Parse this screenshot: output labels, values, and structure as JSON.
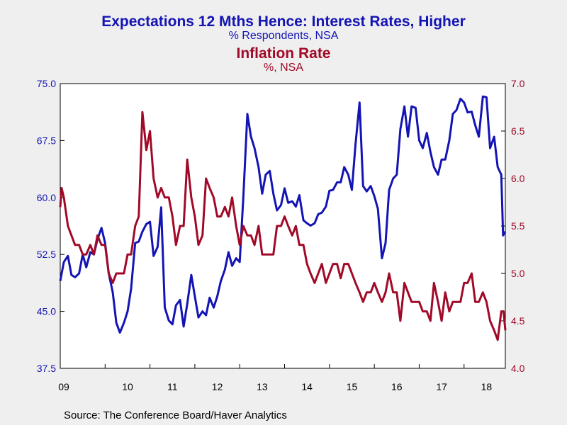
{
  "header": {
    "title_left": "Expectations 12 Mths Hence: Interest Rates, Higher",
    "subtitle_left": "% Respondents, NSA",
    "title_right": "Inflation Rate",
    "subtitle_right": "%, NSA"
  },
  "footer": {
    "source": "Source:  The Conference Board/Haver Analytics"
  },
  "colors": {
    "left_series": "#1414b4",
    "right_series": "#a00a28",
    "background": "#efefef",
    "plot_bg": "#ffffff"
  },
  "chart_data": {
    "type": "line",
    "x_ticks": [
      "09",
      "10",
      "11",
      "12",
      "13",
      "14",
      "15",
      "16",
      "17",
      "18"
    ],
    "x_range": [
      2009.0,
      2018.92
    ],
    "left_axis": {
      "ticks": [
        "75.0",
        "67.5",
        "60.0",
        "52.5",
        "45.0",
        "37.5"
      ],
      "ylim": [
        37.5,
        75.0
      ]
    },
    "right_axis": {
      "ticks": [
        "7.0",
        "6.5",
        "6.0",
        "5.5",
        "5.0",
        "4.5",
        "4.0"
      ],
      "ylim": [
        4.0,
        7.0
      ]
    },
    "grid": false,
    "series": [
      {
        "name": "Expectations 12 Mths Hence: Interest Rates, Higher",
        "axis": "left",
        "points": [
          [
            2009.0,
            49.0
          ],
          [
            2009.08,
            51.5
          ],
          [
            2009.17,
            52.3
          ],
          [
            2009.25,
            49.8
          ],
          [
            2009.33,
            49.5
          ],
          [
            2009.42,
            50.0
          ],
          [
            2009.5,
            52.5
          ],
          [
            2009.58,
            50.8
          ],
          [
            2009.67,
            52.8
          ],
          [
            2009.75,
            52.5
          ],
          [
            2009.83,
            54.5
          ],
          [
            2009.92,
            56.0
          ],
          [
            2010.0,
            54.0
          ],
          [
            2010.08,
            50.0
          ],
          [
            2010.17,
            47.5
          ],
          [
            2010.25,
            43.5
          ],
          [
            2010.33,
            42.2
          ],
          [
            2010.42,
            43.5
          ],
          [
            2010.5,
            45.0
          ],
          [
            2010.58,
            48.0
          ],
          [
            2010.67,
            54.0
          ],
          [
            2010.75,
            54.2
          ],
          [
            2010.83,
            55.5
          ],
          [
            2010.92,
            56.5
          ],
          [
            2011.0,
            56.8
          ],
          [
            2011.08,
            52.3
          ],
          [
            2011.17,
            53.5
          ],
          [
            2011.25,
            58.7
          ],
          [
            2011.33,
            45.5
          ],
          [
            2011.42,
            43.8
          ],
          [
            2011.5,
            43.3
          ],
          [
            2011.58,
            45.8
          ],
          [
            2011.67,
            46.5
          ],
          [
            2011.75,
            43.0
          ],
          [
            2011.83,
            46.0
          ],
          [
            2011.92,
            49.8
          ],
          [
            2012.0,
            47.0
          ],
          [
            2012.08,
            44.2
          ],
          [
            2012.17,
            45.0
          ],
          [
            2012.25,
            44.5
          ],
          [
            2012.33,
            46.8
          ],
          [
            2012.42,
            45.5
          ],
          [
            2012.5,
            47.0
          ],
          [
            2012.58,
            49.0
          ],
          [
            2012.67,
            50.5
          ],
          [
            2012.75,
            52.8
          ],
          [
            2012.83,
            51.0
          ],
          [
            2012.92,
            52.0
          ],
          [
            2013.0,
            51.5
          ],
          [
            2013.08,
            60.0
          ],
          [
            2013.17,
            71.0
          ],
          [
            2013.25,
            68.0
          ],
          [
            2013.33,
            66.5
          ],
          [
            2013.42,
            64.0
          ],
          [
            2013.5,
            60.5
          ],
          [
            2013.58,
            63.0
          ],
          [
            2013.67,
            63.5
          ],
          [
            2013.75,
            60.5
          ],
          [
            2013.83,
            58.3
          ],
          [
            2013.92,
            59.0
          ],
          [
            2014.0,
            61.2
          ],
          [
            2014.08,
            59.3
          ],
          [
            2014.17,
            59.5
          ],
          [
            2014.25,
            58.8
          ],
          [
            2014.33,
            60.3
          ],
          [
            2014.42,
            57.0
          ],
          [
            2014.5,
            56.6
          ],
          [
            2014.58,
            56.3
          ],
          [
            2014.67,
            56.6
          ],
          [
            2014.75,
            57.8
          ],
          [
            2014.83,
            58.0
          ],
          [
            2014.92,
            58.8
          ],
          [
            2015.0,
            60.9
          ],
          [
            2015.08,
            61.0
          ],
          [
            2015.17,
            62.0
          ],
          [
            2015.25,
            62.0
          ],
          [
            2015.33,
            64.0
          ],
          [
            2015.42,
            63.0
          ],
          [
            2015.5,
            61.0
          ],
          [
            2015.58,
            67.0
          ],
          [
            2015.67,
            72.5
          ],
          [
            2015.75,
            61.5
          ],
          [
            2015.83,
            60.8
          ],
          [
            2015.92,
            61.5
          ],
          [
            2016.0,
            60.2
          ],
          [
            2016.08,
            58.5
          ],
          [
            2016.17,
            52.0
          ],
          [
            2016.25,
            54.0
          ],
          [
            2016.33,
            61.0
          ],
          [
            2016.42,
            62.5
          ],
          [
            2016.5,
            63.0
          ],
          [
            2016.58,
            69.0
          ],
          [
            2016.67,
            72.0
          ],
          [
            2016.75,
            68.0
          ],
          [
            2016.83,
            72.0
          ],
          [
            2016.92,
            71.8
          ],
          [
            2017.0,
            67.5
          ],
          [
            2017.08,
            66.5
          ],
          [
            2017.17,
            68.5
          ],
          [
            2017.25,
            66.0
          ],
          [
            2017.33,
            64.0
          ],
          [
            2017.42,
            63.0
          ],
          [
            2017.5,
            65.0
          ],
          [
            2017.58,
            65.0
          ],
          [
            2017.67,
            67.5
          ],
          [
            2017.75,
            71.0
          ],
          [
            2017.83,
            71.5
          ],
          [
            2017.92,
            73.0
          ],
          [
            2018.0,
            72.5
          ],
          [
            2018.08,
            71.2
          ],
          [
            2018.17,
            71.3
          ],
          [
            2018.25,
            69.5
          ],
          [
            2018.33,
            68.0
          ],
          [
            2018.42,
            73.3
          ],
          [
            2018.5,
            73.2
          ],
          [
            2018.58,
            66.5
          ],
          [
            2018.67,
            68.0
          ],
          [
            2018.75,
            64.0
          ],
          [
            2018.83,
            63.0
          ],
          [
            2018.87,
            55.0
          ],
          [
            2018.92,
            55.5
          ]
        ]
      },
      {
        "name": "Inflation Rate",
        "axis": "right",
        "points": [
          [
            2009.0,
            5.7
          ],
          [
            2009.03,
            5.9
          ],
          [
            2009.08,
            5.8
          ],
          [
            2009.17,
            5.5
          ],
          [
            2009.25,
            5.4
          ],
          [
            2009.33,
            5.3
          ],
          [
            2009.42,
            5.3
          ],
          [
            2009.5,
            5.2
          ],
          [
            2009.58,
            5.2
          ],
          [
            2009.67,
            5.3
          ],
          [
            2009.75,
            5.2
          ],
          [
            2009.83,
            5.4
          ],
          [
            2009.92,
            5.3
          ],
          [
            2010.0,
            5.3
          ],
          [
            2010.08,
            5.0
          ],
          [
            2010.17,
            4.9
          ],
          [
            2010.25,
            5.0
          ],
          [
            2010.33,
            5.0
          ],
          [
            2010.42,
            5.0
          ],
          [
            2010.5,
            5.2
          ],
          [
            2010.58,
            5.2
          ],
          [
            2010.67,
            5.5
          ],
          [
            2010.75,
            5.6
          ],
          [
            2010.83,
            6.7
          ],
          [
            2010.92,
            6.3
          ],
          [
            2011.0,
            6.5
          ],
          [
            2011.08,
            6.0
          ],
          [
            2011.17,
            5.8
          ],
          [
            2011.25,
            5.9
          ],
          [
            2011.33,
            5.8
          ],
          [
            2011.42,
            5.8
          ],
          [
            2011.5,
            5.6
          ],
          [
            2011.58,
            5.3
          ],
          [
            2011.67,
            5.5
          ],
          [
            2011.75,
            5.5
          ],
          [
            2011.83,
            6.2
          ],
          [
            2011.92,
            5.8
          ],
          [
            2012.0,
            5.6
          ],
          [
            2012.08,
            5.3
          ],
          [
            2012.17,
            5.4
          ],
          [
            2012.25,
            6.0
          ],
          [
            2012.33,
            5.9
          ],
          [
            2012.42,
            5.8
          ],
          [
            2012.5,
            5.6
          ],
          [
            2012.58,
            5.6
          ],
          [
            2012.67,
            5.7
          ],
          [
            2012.75,
            5.6
          ],
          [
            2012.83,
            5.8
          ],
          [
            2012.92,
            5.5
          ],
          [
            2013.0,
            5.3
          ],
          [
            2013.08,
            5.5
          ],
          [
            2013.17,
            5.4
          ],
          [
            2013.25,
            5.4
          ],
          [
            2013.33,
            5.3
          ],
          [
            2013.42,
            5.5
          ],
          [
            2013.5,
            5.2
          ],
          [
            2013.58,
            5.2
          ],
          [
            2013.67,
            5.2
          ],
          [
            2013.75,
            5.2
          ],
          [
            2013.83,
            5.5
          ],
          [
            2013.92,
            5.5
          ],
          [
            2014.0,
            5.6
          ],
          [
            2014.08,
            5.5
          ],
          [
            2014.17,
            5.4
          ],
          [
            2014.25,
            5.5
          ],
          [
            2014.33,
            5.3
          ],
          [
            2014.42,
            5.3
          ],
          [
            2014.5,
            5.1
          ],
          [
            2014.58,
            5.0
          ],
          [
            2014.67,
            4.9
          ],
          [
            2014.75,
            5.0
          ],
          [
            2014.83,
            5.1
          ],
          [
            2014.92,
            4.9
          ],
          [
            2015.0,
            5.0
          ],
          [
            2015.08,
            5.1
          ],
          [
            2015.17,
            5.1
          ],
          [
            2015.25,
            4.95
          ],
          [
            2015.33,
            5.1
          ],
          [
            2015.42,
            5.1
          ],
          [
            2015.5,
            5.0
          ],
          [
            2015.58,
            4.9
          ],
          [
            2015.67,
            4.8
          ],
          [
            2015.75,
            4.7
          ],
          [
            2015.83,
            4.8
          ],
          [
            2015.92,
            4.8
          ],
          [
            2016.0,
            4.9
          ],
          [
            2016.08,
            4.8
          ],
          [
            2016.17,
            4.7
          ],
          [
            2016.25,
            4.8
          ],
          [
            2016.33,
            5.0
          ],
          [
            2016.42,
            4.8
          ],
          [
            2016.5,
            4.8
          ],
          [
            2016.58,
            4.5
          ],
          [
            2016.67,
            4.9
          ],
          [
            2016.75,
            4.8
          ],
          [
            2016.83,
            4.7
          ],
          [
            2016.92,
            4.7
          ],
          [
            2017.0,
            4.7
          ],
          [
            2017.08,
            4.6
          ],
          [
            2017.17,
            4.6
          ],
          [
            2017.25,
            4.5
          ],
          [
            2017.33,
            4.9
          ],
          [
            2017.42,
            4.7
          ],
          [
            2017.5,
            4.5
          ],
          [
            2017.58,
            4.8
          ],
          [
            2017.67,
            4.6
          ],
          [
            2017.75,
            4.7
          ],
          [
            2017.83,
            4.7
          ],
          [
            2017.92,
            4.7
          ],
          [
            2018.0,
            4.9
          ],
          [
            2018.08,
            4.9
          ],
          [
            2018.17,
            5.0
          ],
          [
            2018.25,
            4.7
          ],
          [
            2018.33,
            4.7
          ],
          [
            2018.42,
            4.8
          ],
          [
            2018.5,
            4.7
          ],
          [
            2018.58,
            4.5
          ],
          [
            2018.67,
            4.4
          ],
          [
            2018.75,
            4.3
          ],
          [
            2018.83,
            4.6
          ],
          [
            2018.88,
            4.6
          ],
          [
            2018.92,
            4.4
          ]
        ]
      }
    ]
  }
}
